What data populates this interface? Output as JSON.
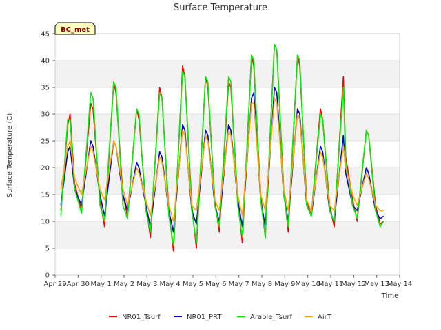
{
  "chart_data": {
    "type": "line",
    "title": "Surface Temperature",
    "xlabel": "Time",
    "ylabel": "Surface Temperature (C)",
    "badge": "BC_met",
    "ylim": [
      0,
      45
    ],
    "yticks": [
      0,
      5,
      10,
      15,
      20,
      25,
      30,
      35,
      40,
      45
    ],
    "xlim": [
      0,
      15
    ],
    "xtick_labels": [
      "Apr 29",
      "Apr 30",
      "May 1",
      "May 2",
      "May 3",
      "May 4",
      "May 5",
      "May 6",
      "May 7",
      "May 8",
      "May 9",
      "May 10",
      "May 11",
      "May 12",
      "May 13",
      "May 14"
    ],
    "grid": "horizontal bands",
    "legend_position": "bottom",
    "colors": {
      "NR01_Tsurf": "#ff0000",
      "NR01_PRT": "#0000cc",
      "Arable_Tsurf": "#00ee00",
      "AirT": "#ffa500",
      "band": "#f2f2f2",
      "badge_fill": "#ffffc0"
    },
    "x": [
      0.25,
      0.55,
      0.65,
      0.85,
      1.15,
      1.55,
      1.65,
      1.95,
      2.15,
      2.55,
      2.65,
      2.95,
      3.15,
      3.55,
      3.65,
      3.95,
      4.15,
      4.55,
      4.65,
      4.95,
      5.15,
      5.55,
      5.65,
      5.95,
      6.15,
      6.55,
      6.65,
      6.95,
      7.15,
      7.55,
      7.65,
      7.95,
      8.15,
      8.55,
      8.65,
      8.95,
      9.15,
      9.55,
      9.65,
      9.95,
      10.15,
      10.55,
      10.65,
      10.95,
      11.15,
      11.55,
      11.65,
      11.95,
      12.15,
      12.55,
      12.65,
      12.95,
      13.15,
      13.55,
      13.65,
      13.95,
      14.15,
      14.3
    ],
    "series": [
      {
        "name": "NR01_Tsurf",
        "values": [
          12,
          28,
          30,
          17,
          12,
          32,
          31,
          14,
          9,
          36,
          34,
          15,
          11,
          31,
          29,
          13,
          7,
          35,
          33,
          12,
          4.5,
          39,
          37,
          13,
          5,
          37,
          35,
          14,
          8,
          36,
          35,
          14,
          6,
          41,
          39,
          15,
          7,
          43,
          42,
          16,
          8,
          41,
          39,
          14,
          11,
          31,
          29,
          13,
          9,
          37,
          22,
          14,
          10,
          27,
          26,
          13,
          9.5,
          10
        ]
      },
      {
        "name": "NR01_PRT",
        "values": [
          13,
          23,
          24,
          16,
          13,
          25,
          24,
          15,
          11,
          25,
          24,
          15,
          12,
          21,
          20,
          13,
          9,
          23,
          22,
          12,
          8,
          28,
          27,
          12,
          9.5,
          27,
          26,
          13,
          10,
          28,
          27,
          14,
          9,
          33,
          34,
          14,
          9,
          35,
          34,
          15,
          10,
          31,
          30,
          13,
          11,
          24,
          23,
          12,
          10,
          26,
          19,
          13,
          12,
          20,
          19,
          12,
          10.5,
          11
        ]
      },
      {
        "name": "Arable_Tsurf",
        "values": [
          11,
          29,
          29,
          16,
          11.5,
          34,
          33,
          13,
          10,
          36,
          35,
          13,
          10.5,
          31,
          30,
          12,
          8,
          34,
          33,
          11,
          5.5,
          38,
          37,
          12,
          6,
          37,
          36,
          13,
          9,
          37,
          36,
          13,
          7,
          41,
          40,
          14,
          7,
          43,
          42,
          15,
          9,
          41,
          40,
          13,
          11,
          30,
          29,
          12,
          10,
          35,
          21,
          13,
          10.5,
          27,
          26,
          12,
          9,
          10
        ]
      },
      {
        "name": "AirT",
        "values": [
          16,
          24,
          25,
          18,
          15,
          24,
          23,
          16,
          14,
          25,
          24,
          16,
          13,
          20,
          19,
          14,
          11,
          22,
          21,
          13,
          10,
          27,
          26,
          13,
          12,
          26,
          25,
          14,
          12,
          27,
          26,
          15,
          11,
          32,
          32,
          15,
          12,
          33,
          32,
          16,
          12,
          30,
          29,
          14,
          12,
          23,
          22,
          13,
          12,
          24,
          20,
          15,
          13,
          19,
          18,
          13,
          12,
          12
        ]
      }
    ]
  }
}
